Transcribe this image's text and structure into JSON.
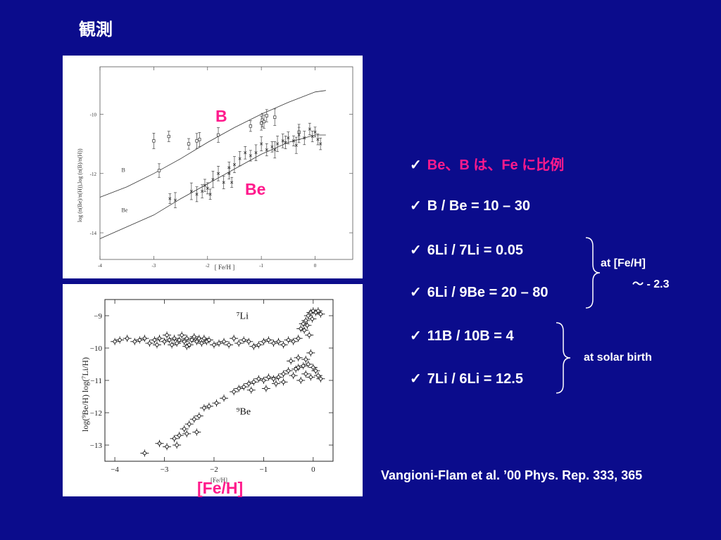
{
  "slide": {
    "title": "観測",
    "overlay_b": "B",
    "overlay_be": "Be",
    "overlay_feh": "[Fe/H]",
    "bullets": [
      {
        "check": "✓",
        "text": "Be、B は、Fe に比例"
      },
      {
        "check": "✓",
        "text": "B / Be = 10 – 30"
      },
      {
        "check": "✓",
        "text": "6Li / 7Li = 0.05"
      },
      {
        "check": "✓",
        "text": "6Li / 9Be = 20 – 80"
      },
      {
        "check": "✓",
        "text": "11B / 10B = 4"
      },
      {
        "check": "✓",
        "text": "7Li / 6Li = 12.5"
      }
    ],
    "note_feh_line1": "at [Fe/H]",
    "note_feh_line2": "～ - 2.3",
    "note_solar": "at solar birth",
    "citation": "Vangioni-Flam et al. ’00 Phys. Rep. 333, 365",
    "colors": {
      "background": "#0b0c8c",
      "accent": "#ff1a8c",
      "text": "#ffffff"
    }
  },
  "chart_data": [
    {
      "type": "scatter",
      "title": "",
      "xlabel": "[ Fe/H ]",
      "ylabel": "log (n(Be)/n(H)),log (n(B)/n(H))",
      "xlim": [
        -4,
        0.7
      ],
      "ylim": [
        -14.9,
        -8.4
      ],
      "xticks": [
        -4,
        -3,
        -2,
        -1,
        0
      ],
      "xtick_labels": [
        "-4",
        "-3",
        "-2",
        "-1",
        "0"
      ],
      "yticks": [
        -10,
        -12,
        -14
      ],
      "ytick_labels": [
        "-10",
        "-12",
        "-14"
      ],
      "grid": false,
      "curve_labels": [
        {
          "text": "B",
          "x": -3.6,
          "y": -11.95
        },
        {
          "text": "Be",
          "x": -3.6,
          "y": -13.3
        }
      ],
      "series": [
        {
          "marker": "open-square",
          "points": [
            [
              -3.0,
              -10.9
            ],
            [
              -2.72,
              -10.75
            ],
            [
              -2.35,
              -11.0
            ],
            [
              -2.2,
              -10.9
            ],
            [
              -2.15,
              -10.85
            ],
            [
              -1.8,
              -10.7
            ],
            [
              -1.0,
              -10.3
            ],
            [
              -0.98,
              -10.2
            ],
            [
              -0.95,
              -10.25
            ],
            [
              -0.9,
              -10.05
            ],
            [
              -0.75,
              -10.1
            ],
            [
              -0.3,
              -10.6
            ],
            [
              -1.2,
              -10.4
            ],
            [
              -2.9,
              -11.9
            ]
          ]
        },
        {
          "marker": "cross",
          "points": [
            [
              -2.7,
              -12.85
            ],
            [
              -2.6,
              -12.9
            ],
            [
              -2.3,
              -12.6
            ],
            [
              -2.2,
              -12.7
            ],
            [
              -2.1,
              -12.6
            ],
            [
              -2.0,
              -12.5
            ],
            [
              -1.95,
              -12.7
            ],
            [
              -1.9,
              -12.2
            ],
            [
              -1.8,
              -12.0
            ],
            [
              -1.7,
              -12.3
            ],
            [
              -1.6,
              -11.8
            ],
            [
              -1.6,
              -12.0
            ],
            [
              -1.5,
              -11.7
            ],
            [
              -1.4,
              -11.5
            ],
            [
              -1.3,
              -11.3
            ],
            [
              -1.2,
              -11.4
            ],
            [
              -1.1,
              -11.3
            ],
            [
              -1.0,
              -11.0
            ],
            [
              -0.9,
              -11.2
            ],
            [
              -0.8,
              -11.1
            ],
            [
              -0.7,
              -11.0
            ],
            [
              -0.6,
              -10.9
            ],
            [
              -0.5,
              -10.8
            ],
            [
              -0.4,
              -10.9
            ],
            [
              -0.3,
              -10.7
            ],
            [
              -0.2,
              -10.8
            ],
            [
              -0.1,
              -10.5
            ],
            [
              0.0,
              -10.6
            ],
            [
              0.1,
              -11.0
            ],
            [
              -0.75,
              -11.2
            ],
            [
              -0.55,
              -10.95
            ],
            [
              -0.35,
              -11.05
            ],
            [
              -0.05,
              -10.75
            ],
            [
              0.05,
              -10.85
            ],
            [
              -1.55,
              -12.3
            ],
            [
              -2.05,
              -12.4
            ]
          ]
        }
      ],
      "curves": [
        {
          "name": "B",
          "points": [
            [
              -4,
              -12.8
            ],
            [
              -3.5,
              -12.45
            ],
            [
              -3,
              -12.0
            ],
            [
              -2.5,
              -11.5
            ],
            [
              -2,
              -10.95
            ],
            [
              -1.5,
              -10.45
            ],
            [
              -1,
              -10.0
            ],
            [
              -0.5,
              -9.6
            ],
            [
              0,
              -9.25
            ],
            [
              0.2,
              -9.2
            ]
          ]
        },
        {
          "name": "Be",
          "points": [
            [
              -4,
              -14.2
            ],
            [
              -3.5,
              -13.8
            ],
            [
              -3,
              -13.4
            ],
            [
              -2.5,
              -12.85
            ],
            [
              -2,
              -12.35
            ],
            [
              -1.5,
              -11.85
            ],
            [
              -1,
              -11.35
            ],
            [
              -0.5,
              -10.95
            ],
            [
              0,
              -10.7
            ],
            [
              0.2,
              -10.7
            ]
          ]
        }
      ]
    },
    {
      "type": "scatter",
      "title": "",
      "xlabel": "[Fe/H]",
      "ylabel": "log(⁹Be/H)   log(⁷Li/H)",
      "xlim": [
        -4.2,
        0.4
      ],
      "ylim": [
        -13.5,
        -8.5
      ],
      "xticks": [
        -4,
        -3,
        -2,
        -1,
        0
      ],
      "xtick_labels": [
        "−4",
        "−3",
        "−2",
        "−1",
        "0"
      ],
      "yticks": [
        -9,
        -10,
        -11,
        -12,
        -13
      ],
      "ytick_labels": [
        "−9",
        "−10",
        "−11",
        "−12",
        "−13"
      ],
      "grid": false,
      "series_labels": [
        {
          "text": "⁷Li",
          "x": -1.55,
          "y": -9.1
        },
        {
          "text": "⁹Be",
          "x": -1.55,
          "y": -12.05
        }
      ],
      "series": [
        {
          "name": "⁷Li",
          "points": [
            [
              -4.0,
              -9.8
            ],
            [
              -3.9,
              -9.75
            ],
            [
              -3.75,
              -9.7
            ],
            [
              -3.6,
              -9.8
            ],
            [
              -3.5,
              -9.75
            ],
            [
              -3.4,
              -9.7
            ],
            [
              -3.3,
              -9.85
            ],
            [
              -3.2,
              -9.75
            ],
            [
              -3.1,
              -9.7
            ],
            [
              -3.0,
              -9.8
            ],
            [
              -2.95,
              -9.6
            ],
            [
              -2.9,
              -9.75
            ],
            [
              -2.85,
              -9.9
            ],
            [
              -2.8,
              -9.7
            ],
            [
              -2.75,
              -9.85
            ],
            [
              -2.7,
              -9.75
            ],
            [
              -2.65,
              -9.6
            ],
            [
              -2.6,
              -9.8
            ],
            [
              -2.55,
              -9.7
            ],
            [
              -2.5,
              -9.9
            ],
            [
              -2.45,
              -9.75
            ],
            [
              -2.4,
              -9.65
            ],
            [
              -2.35,
              -9.8
            ],
            [
              -2.3,
              -9.7
            ],
            [
              -2.25,
              -9.85
            ],
            [
              -2.2,
              -9.7
            ],
            [
              -2.15,
              -9.8
            ],
            [
              -2.1,
              -9.75
            ],
            [
              -2.0,
              -9.9
            ],
            [
              -1.9,
              -9.85
            ],
            [
              -1.8,
              -9.8
            ],
            [
              -1.7,
              -9.9
            ],
            [
              -1.6,
              -9.7
            ],
            [
              -1.5,
              -9.85
            ],
            [
              -1.4,
              -9.75
            ],
            [
              -1.3,
              -9.8
            ],
            [
              -1.2,
              -9.95
            ],
            [
              -1.1,
              -9.9
            ],
            [
              -1.0,
              -9.8
            ],
            [
              -0.9,
              -9.75
            ],
            [
              -0.8,
              -9.85
            ],
            [
              -0.7,
              -9.8
            ],
            [
              -0.6,
              -9.9
            ],
            [
              -0.5,
              -9.75
            ],
            [
              -0.4,
              -9.8
            ],
            [
              -0.3,
              -9.7
            ],
            [
              -0.25,
              -9.4
            ],
            [
              -0.2,
              -9.25
            ],
            [
              -0.15,
              -9.15
            ],
            [
              -0.1,
              -9.0
            ],
            [
              -0.05,
              -8.9
            ],
            [
              0.0,
              -8.85
            ],
            [
              0.05,
              -8.9
            ],
            [
              0.1,
              -8.85
            ],
            [
              0.15,
              -8.95
            ],
            [
              -0.18,
              -9.45
            ],
            [
              -0.12,
              -9.3
            ],
            [
              -0.08,
              -9.6
            ],
            [
              -0.02,
              -9.1
            ],
            [
              -2.55,
              -9.95
            ],
            [
              -3.15,
              -9.9
            ]
          ]
        },
        {
          "name": "⁹Be",
          "points": [
            [
              -3.4,
              -13.25
            ],
            [
              -3.1,
              -12.95
            ],
            [
              -2.95,
              -13.05
            ],
            [
              -2.8,
              -12.8
            ],
            [
              -2.7,
              -12.7
            ],
            [
              -2.6,
              -12.5
            ],
            [
              -2.5,
              -12.35
            ],
            [
              -2.4,
              -12.2
            ],
            [
              -2.3,
              -12.1
            ],
            [
              -2.2,
              -11.85
            ],
            [
              -2.1,
              -11.8
            ],
            [
              -1.95,
              -11.7
            ],
            [
              -1.8,
              -11.55
            ],
            [
              -1.6,
              -11.35
            ],
            [
              -1.5,
              -11.25
            ],
            [
              -1.4,
              -11.2
            ],
            [
              -1.3,
              -11.1
            ],
            [
              -1.2,
              -11.05
            ],
            [
              -1.1,
              -10.95
            ],
            [
              -1.0,
              -11.0
            ],
            [
              -0.9,
              -10.9
            ],
            [
              -0.8,
              -10.95
            ],
            [
              -0.7,
              -10.9
            ],
            [
              -0.6,
              -10.8
            ],
            [
              -0.5,
              -10.7
            ],
            [
              -0.4,
              -10.85
            ],
            [
              -0.3,
              -10.6
            ],
            [
              -0.2,
              -10.55
            ],
            [
              -0.1,
              -10.5
            ],
            [
              0.0,
              -10.6
            ],
            [
              0.05,
              -10.7
            ],
            [
              0.1,
              -10.85
            ],
            [
              0.15,
              -10.95
            ],
            [
              -0.15,
              -10.8
            ],
            [
              -0.05,
              -10.9
            ],
            [
              -0.35,
              -10.65
            ],
            [
              -0.25,
              -11.0
            ],
            [
              -0.6,
              -11.05
            ],
            [
              -0.75,
              -11.1
            ],
            [
              -0.95,
              -11.25
            ],
            [
              -1.25,
              -11.3
            ],
            [
              -0.45,
              -10.4
            ],
            [
              -0.3,
              -10.3
            ],
            [
              -0.15,
              -10.35
            ],
            [
              -0.05,
              -10.15
            ],
            [
              -2.35,
              -12.6
            ],
            [
              -2.55,
              -12.65
            ],
            [
              -2.75,
              -13.0
            ]
          ]
        }
      ]
    }
  ]
}
